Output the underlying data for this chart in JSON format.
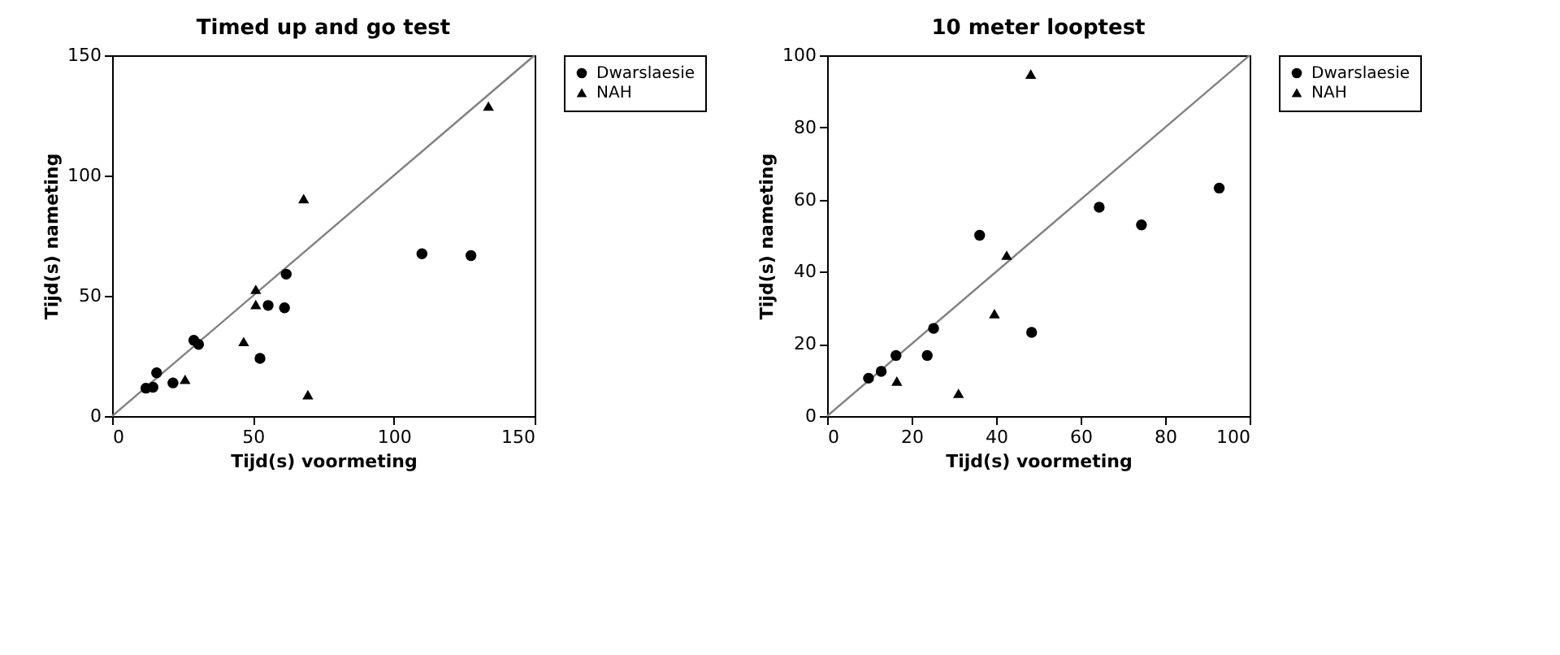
{
  "chart_data": [
    {
      "type": "scatter",
      "title": "Timed up and go test",
      "xlabel": "Tijd(s) voormeting",
      "ylabel": "Tijd(s) nameting",
      "xlim": [
        0,
        150
      ],
      "ylim": [
        0,
        150
      ],
      "xticks": [
        0,
        50,
        100,
        150
      ],
      "yticks": [
        0,
        50,
        100,
        150
      ],
      "grid": false,
      "legend": "right",
      "series": [
        {
          "type": "line",
          "color": "#808080",
          "x": [
            0,
            150
          ],
          "values": [
            0,
            150
          ],
          "line_style": "solid"
        },
        {
          "name": "Dwarslaesie",
          "color": "#000000",
          "marker": "circle",
          "x": [
            12,
            14.5,
            15.8,
            21.6,
            29,
            30.7,
            52.5,
            55.4,
            61.2,
            61.8,
            110,
            127.4
          ],
          "values": [
            11.6,
            12,
            18,
            13.8,
            31.5,
            29.8,
            24,
            46,
            45,
            59,
            67.5,
            66.7
          ]
        },
        {
          "name": "NAH",
          "color": "#000000",
          "marker": "triangle",
          "x": [
            25.9,
            46.7,
            51,
            51,
            68,
            69.5,
            133.6
          ],
          "values": [
            15.3,
            31,
            52.7,
            46.4,
            90.4,
            8.9,
            128.9
          ]
        }
      ]
    },
    {
      "type": "scatter",
      "title": "10 meter looptest",
      "xlabel": "Tijd(s) voormeting",
      "ylabel": "Tijd(s) nameting",
      "xlim": [
        0,
        100
      ],
      "ylim": [
        0,
        100
      ],
      "xticks": [
        0,
        20,
        40,
        60,
        80,
        100
      ],
      "yticks": [
        0,
        20,
        40,
        60,
        80,
        100
      ],
      "grid": false,
      "legend": "right",
      "series": [
        {
          "type": "line",
          "color": "#808080",
          "x": [
            0,
            100
          ],
          "values": [
            0,
            100
          ],
          "line_style": "solid"
        },
        {
          "name": "Dwarslaesie",
          "color": "#000000",
          "marker": "circle",
          "x": [
            9.8,
            12.8,
            16.3,
            23.7,
            25.2,
            36.1,
            48.4,
            64.4,
            74.4,
            92.8
          ],
          "values": [
            10.5,
            12.4,
            16.8,
            16.8,
            24.3,
            50.1,
            23.2,
            57.9,
            53,
            63.2
          ]
        },
        {
          "name": "NAH",
          "color": "#000000",
          "marker": "triangle",
          "x": [
            16.5,
            31.1,
            39.6,
            42.5,
            48.2
          ],
          "values": [
            9.7,
            6.3,
            28.4,
            44.6,
            94.8
          ]
        }
      ]
    }
  ]
}
